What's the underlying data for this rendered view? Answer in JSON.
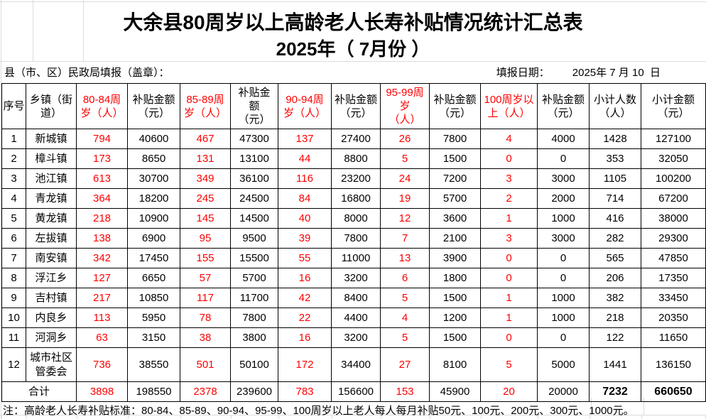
{
  "colors": {
    "highlight_red": "#ff0000",
    "text_black": "#000000",
    "gridline_gray": "#dcdcdc"
  },
  "title": {
    "line1": "大余县80周岁以上高龄老人长寿补贴情况统计汇总表",
    "line2": "2025年（ 7月份 ）"
  },
  "info": {
    "left": "县（市、区）民政局填报（盖章）：",
    "date_label": "填报日期：",
    "date_value": "2025年 7 月 10  日"
  },
  "table": {
    "columns": [
      {
        "key": "index",
        "label": "序号",
        "red": false
      },
      {
        "key": "town",
        "label": "乡镇（街\n道）",
        "red": false
      },
      {
        "key": "age80",
        "label": "80-84周\n岁（人）",
        "red": true
      },
      {
        "key": "amt80",
        "label": "补贴金额\n（元）",
        "red": false
      },
      {
        "key": "age85",
        "label": "85-89周\n岁（人）",
        "red": true
      },
      {
        "key": "amt85",
        "label": "补贴金\n额\n（元）",
        "red": false
      },
      {
        "key": "age90",
        "label": "90-94周\n岁（人）",
        "red": true
      },
      {
        "key": "amt90",
        "label": "补贴金额\n（元）",
        "red": false
      },
      {
        "key": "age95",
        "label": "95-99周\n岁\n（人）",
        "red": true
      },
      {
        "key": "amt95",
        "label": "补贴金额\n（元）",
        "red": false
      },
      {
        "key": "age100",
        "label": "100周岁以\n上（人）",
        "red": true
      },
      {
        "key": "amt100",
        "label": "补贴金额\n（元）",
        "red": false
      },
      {
        "key": "subtotal_count",
        "label": "小计人数\n（人）",
        "red": false
      },
      {
        "key": "subtotal_amount",
        "label": "小计金额\n（元）",
        "red": false
      }
    ],
    "rows": [
      {
        "no": "1",
        "town": "新城镇",
        "values": [
          "794",
          "40600",
          "467",
          "47300",
          "137",
          "27400",
          "26",
          "7800",
          "4",
          "4000",
          "1428",
          "127100"
        ]
      },
      {
        "no": "2",
        "town": "樟斗镇",
        "values": [
          "173",
          "8650",
          "131",
          "13100",
          "44",
          "8800",
          "5",
          "1500",
          "0",
          "0",
          "353",
          "32050"
        ]
      },
      {
        "no": "3",
        "town": "池江镇",
        "values": [
          "613",
          "30700",
          "349",
          "36100",
          "116",
          "23200",
          "24",
          "7200",
          "3",
          "3000",
          "1105",
          "100200"
        ]
      },
      {
        "no": "4",
        "town": "青龙镇",
        "values": [
          "364",
          "18200",
          "245",
          "24500",
          "84",
          "16800",
          "19",
          "5700",
          "2",
          "2000",
          "714",
          "67200"
        ]
      },
      {
        "no": "5",
        "town": "黄龙镇",
        "values": [
          "218",
          "10900",
          "145",
          "14500",
          "40",
          "8000",
          "12",
          "3600",
          "1",
          "1000",
          "416",
          "38000"
        ]
      },
      {
        "no": "6",
        "town": "左拔镇",
        "values": [
          "138",
          "6900",
          "95",
          "9500",
          "39",
          "7800",
          "7",
          "2100",
          "3",
          "3000",
          "282",
          "29300"
        ]
      },
      {
        "no": "7",
        "town": "南安镇",
        "values": [
          "342",
          "17450",
          "155",
          "15500",
          "55",
          "11000",
          "13",
          "3900",
          "0",
          "0",
          "565",
          "47850"
        ]
      },
      {
        "no": "8",
        "town": "浮江乡",
        "values": [
          "127",
          "6650",
          "57",
          "5700",
          "16",
          "3200",
          "6",
          "1800",
          "0",
          "0",
          "206",
          "17350"
        ]
      },
      {
        "no": "9",
        "town": "吉村镇",
        "values": [
          "217",
          "10850",
          "117",
          "11700",
          "42",
          "8400",
          "5",
          "1500",
          "1",
          "1000",
          "382",
          "33450"
        ]
      },
      {
        "no": "10",
        "town": "内良乡",
        "values": [
          "113",
          "5950",
          "78",
          "7800",
          "22",
          "4400",
          "4",
          "1200",
          "1",
          "1000",
          "218",
          "20350"
        ]
      },
      {
        "no": "11",
        "town": "河洞乡",
        "values": [
          "63",
          "3150",
          "38",
          "3800",
          "16",
          "3200",
          "5",
          "1500",
          "0",
          "0",
          "122",
          "11650"
        ]
      },
      {
        "no": "12",
        "town": "城市社区管委会",
        "values": [
          "736",
          "38550",
          "501",
          "50100",
          "172",
          "34400",
          "27",
          "8100",
          "5",
          "5000",
          "1441",
          "136150"
        ]
      }
    ],
    "total": {
      "label": "合计",
      "values": [
        "3898",
        "198550",
        "2378",
        "239600",
        "783",
        "156600",
        "153",
        "45900",
        "20",
        "20000",
        "7232",
        "660650"
      ]
    }
  },
  "footnote": "注：高龄老人长寿补贴标准：80-84、85-89、90-94、95-99、100周岁以上老人每人每月补贴50元、100元、200元、300元、1000元。"
}
